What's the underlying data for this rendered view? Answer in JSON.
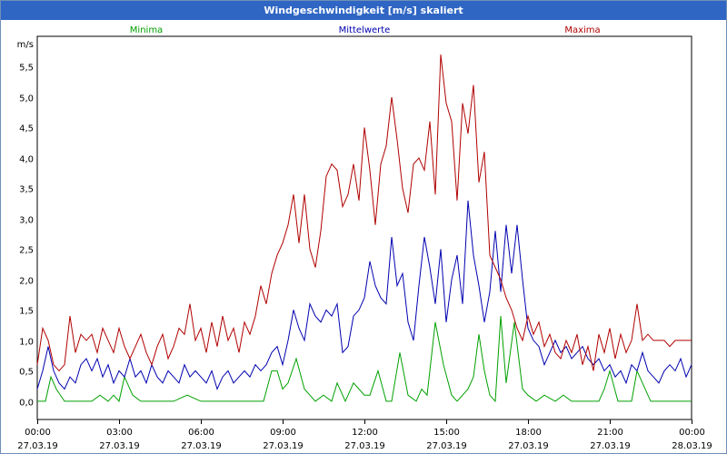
{
  "window": {
    "title": "Windgeschwindigkeit [m/s] skaliert"
  },
  "chart_data": {
    "type": "line",
    "title": "Windgeschwindigkeit [m/s] skaliert",
    "ylabel": "m/s",
    "xlabel": "",
    "ylim": [
      -0.3,
      6.0
    ],
    "y_ticks": [
      "0,0",
      "0,5",
      "1,0",
      "1,5",
      "2,0",
      "2,5",
      "3,0",
      "3,5",
      "4,0",
      "4,5",
      "5,0",
      "5,5"
    ],
    "y_tick_values": [
      0,
      0.5,
      1.0,
      1.5,
      2.0,
      2.5,
      3.0,
      3.5,
      4.0,
      4.5,
      5.0,
      5.5
    ],
    "x_range_hours": [
      0,
      24
    ],
    "x_ticks": [
      {
        "hour": 0,
        "time": "00:00",
        "date": "27.03.19"
      },
      {
        "hour": 3,
        "time": "03:00",
        "date": "27.03.19"
      },
      {
        "hour": 6,
        "time": "06:00",
        "date": "27.03.19"
      },
      {
        "hour": 9,
        "time": "09:00",
        "date": "27.03.19"
      },
      {
        "hour": 12,
        "time": "12:00",
        "date": "27.03.19"
      },
      {
        "hour": 15,
        "time": "15:00",
        "date": "27.03.19"
      },
      {
        "hour": 18,
        "time": "18:00",
        "date": "27.03.19"
      },
      {
        "hour": 21,
        "time": "21:00",
        "date": "27.03.19"
      },
      {
        "hour": 24,
        "time": "00:00",
        "date": "28.03.19"
      }
    ],
    "grid": true,
    "legend_position": "top",
    "series": [
      {
        "name": "Minima",
        "color": "#00a000",
        "x": [
          0,
          0.3,
          0.5,
          0.7,
          1.0,
          1.5,
          2.0,
          2.3,
          2.6,
          2.8,
          3.0,
          3.2,
          3.5,
          3.8,
          4.0,
          4.5,
          5.0,
          5.5,
          6.0,
          6.5,
          7.0,
          7.5,
          8.0,
          8.3,
          8.6,
          8.8,
          9.0,
          9.2,
          9.5,
          9.8,
          10.0,
          10.2,
          10.5,
          10.8,
          11.0,
          11.3,
          11.6,
          12.0,
          12.2,
          12.5,
          12.8,
          13.0,
          13.3,
          13.6,
          13.9,
          14.1,
          14.3,
          14.6,
          14.9,
          15.2,
          15.4,
          15.6,
          15.8,
          16.0,
          16.2,
          16.4,
          16.6,
          16.8,
          17.0,
          17.2,
          17.5,
          17.8,
          18.0,
          18.3,
          18.6,
          19.0,
          19.3,
          19.6,
          20.0,
          20.3,
          20.6,
          20.8,
          21.0,
          21.3,
          21.6,
          21.8,
          22.0,
          22.5,
          23.0,
          23.5,
          24.0
        ],
        "y": [
          0,
          0,
          0.4,
          0.2,
          0,
          0,
          0,
          0.1,
          0,
          0.1,
          0,
          0.4,
          0.1,
          0,
          0,
          0,
          0,
          0.1,
          0,
          0,
          0,
          0,
          0,
          0,
          0.5,
          0.5,
          0.2,
          0.3,
          0.7,
          0.2,
          0.1,
          0,
          0.1,
          0,
          0.3,
          0,
          0.3,
          0.1,
          0.1,
          0.5,
          0,
          0,
          0.8,
          0.1,
          0,
          0.2,
          0.1,
          1.3,
          0.6,
          0.1,
          0,
          0.1,
          0.2,
          0.4,
          1.1,
          0.5,
          0.1,
          0,
          1.4,
          0.3,
          1.3,
          0.2,
          0.1,
          0,
          0.1,
          0,
          0.1,
          0,
          0,
          0,
          0,
          0.2,
          0.5,
          0,
          0,
          0,
          0.5,
          0,
          0,
          0,
          0
        ]
      },
      {
        "name": "Mittelwerte",
        "color": "#0000b0",
        "x": [
          0,
          0.2,
          0.4,
          0.6,
          0.8,
          1.0,
          1.2,
          1.4,
          1.6,
          1.8,
          2.0,
          2.2,
          2.4,
          2.6,
          2.8,
          3.0,
          3.2,
          3.4,
          3.6,
          3.8,
          4.0,
          4.2,
          4.4,
          4.6,
          4.8,
          5.0,
          5.2,
          5.4,
          5.6,
          5.8,
          6.0,
          6.2,
          6.4,
          6.6,
          6.8,
          7.0,
          7.2,
          7.4,
          7.6,
          7.8,
          8.0,
          8.2,
          8.4,
          8.6,
          8.8,
          9.0,
          9.2,
          9.4,
          9.6,
          9.8,
          10.0,
          10.2,
          10.4,
          10.6,
          10.8,
          11.0,
          11.2,
          11.4,
          11.6,
          11.8,
          12.0,
          12.2,
          12.4,
          12.6,
          12.8,
          13.0,
          13.2,
          13.4,
          13.6,
          13.8,
          14.0,
          14.2,
          14.4,
          14.6,
          14.8,
          15.0,
          15.2,
          15.4,
          15.6,
          15.8,
          16.0,
          16.2,
          16.4,
          16.6,
          16.8,
          17.0,
          17.2,
          17.4,
          17.6,
          17.8,
          18.0,
          18.2,
          18.4,
          18.6,
          18.8,
          19.0,
          19.2,
          19.4,
          19.6,
          19.8,
          20.0,
          20.2,
          20.4,
          20.6,
          20.8,
          21.0,
          21.2,
          21.4,
          21.6,
          21.8,
          22.0,
          22.2,
          22.4,
          22.6,
          22.8,
          23.0,
          23.2,
          23.4,
          23.6,
          23.8,
          24.0
        ],
        "y": [
          0.2,
          0.5,
          0.9,
          0.5,
          0.3,
          0.2,
          0.4,
          0.3,
          0.6,
          0.7,
          0.5,
          0.7,
          0.4,
          0.6,
          0.3,
          0.5,
          0.4,
          0.7,
          0.4,
          0.5,
          0.3,
          0.6,
          0.4,
          0.3,
          0.5,
          0.4,
          0.3,
          0.6,
          0.4,
          0.5,
          0.4,
          0.3,
          0.5,
          0.2,
          0.4,
          0.5,
          0.3,
          0.4,
          0.5,
          0.4,
          0.6,
          0.5,
          0.6,
          0.8,
          0.9,
          0.6,
          1.0,
          1.5,
          1.2,
          1.0,
          1.6,
          1.4,
          1.3,
          1.5,
          1.4,
          1.6,
          0.8,
          0.9,
          1.4,
          1.5,
          1.7,
          2.3,
          1.9,
          1.7,
          1.6,
          2.7,
          1.9,
          2.1,
          1.3,
          1.0,
          1.9,
          2.7,
          2.2,
          1.6,
          2.5,
          1.3,
          2.0,
          2.4,
          1.6,
          3.3,
          2.4,
          1.9,
          1.3,
          1.8,
          2.8,
          1.8,
          2.9,
          2.1,
          2.9,
          2.0,
          1.2,
          1.0,
          0.9,
          0.6,
          0.8,
          1.0,
          0.8,
          0.9,
          0.7,
          0.8,
          0.9,
          0.7,
          0.6,
          0.7,
          0.5,
          0.6,
          0.4,
          0.5,
          0.3,
          0.6,
          0.5,
          0.8,
          0.5,
          0.4,
          0.3,
          0.5,
          0.6,
          0.5,
          0.7,
          0.4,
          0.6
        ]
      },
      {
        "name": "Maxima",
        "color": "#b00000",
        "x": [
          0,
          0.2,
          0.4,
          0.6,
          0.8,
          1.0,
          1.2,
          1.4,
          1.6,
          1.8,
          2.0,
          2.2,
          2.4,
          2.6,
          2.8,
          3.0,
          3.2,
          3.4,
          3.6,
          3.8,
          4.0,
          4.2,
          4.4,
          4.6,
          4.8,
          5.0,
          5.2,
          5.4,
          5.6,
          5.8,
          6.0,
          6.2,
          6.4,
          6.6,
          6.8,
          7.0,
          7.2,
          7.4,
          7.6,
          7.8,
          8.0,
          8.2,
          8.4,
          8.6,
          8.8,
          9.0,
          9.2,
          9.4,
          9.6,
          9.8,
          10.0,
          10.2,
          10.4,
          10.6,
          10.8,
          11.0,
          11.2,
          11.4,
          11.6,
          11.8,
          12.0,
          12.2,
          12.4,
          12.6,
          12.8,
          13.0,
          13.2,
          13.4,
          13.6,
          13.8,
          14.0,
          14.2,
          14.4,
          14.6,
          14.8,
          15.0,
          15.2,
          15.4,
          15.6,
          15.8,
          16.0,
          16.2,
          16.4,
          16.6,
          16.8,
          17.0,
          17.2,
          17.4,
          17.6,
          17.8,
          18.0,
          18.2,
          18.4,
          18.6,
          18.8,
          19.0,
          19.2,
          19.4,
          19.6,
          19.8,
          20.0,
          20.2,
          20.4,
          20.6,
          20.8,
          21.0,
          21.2,
          21.4,
          21.6,
          21.8,
          22.0,
          22.2,
          22.4,
          22.6,
          22.8,
          23.0,
          23.2,
          23.4,
          23.6,
          23.8,
          24.0
        ],
        "y": [
          0.6,
          1.2,
          1.0,
          0.6,
          0.5,
          0.6,
          1.4,
          0.8,
          1.1,
          1.0,
          1.1,
          0.8,
          1.2,
          1.0,
          0.8,
          1.2,
          0.9,
          0.7,
          0.9,
          1.1,
          0.8,
          0.6,
          0.9,
          1.1,
          0.7,
          0.9,
          1.2,
          1.1,
          1.6,
          1.0,
          1.2,
          0.8,
          1.3,
          0.9,
          1.4,
          1.0,
          1.2,
          0.8,
          1.3,
          1.1,
          1.4,
          1.9,
          1.6,
          2.1,
          2.4,
          2.6,
          2.9,
          3.4,
          2.6,
          3.4,
          2.5,
          2.2,
          2.8,
          3.7,
          3.9,
          3.8,
          3.2,
          3.4,
          3.9,
          3.3,
          4.5,
          3.8,
          2.9,
          3.9,
          4.2,
          5.0,
          4.3,
          3.5,
          3.1,
          3.9,
          4.0,
          3.8,
          4.6,
          3.4,
          5.7,
          4.9,
          4.6,
          3.3,
          4.9,
          4.4,
          5.2,
          3.6,
          4.1,
          2.4,
          2.2,
          2.0,
          1.7,
          1.5,
          1.2,
          1.0,
          1.4,
          1.1,
          1.3,
          0.9,
          1.1,
          0.8,
          0.7,
          1.0,
          0.8,
          1.1,
          0.6,
          0.9,
          0.5,
          1.1,
          0.8,
          1.2,
          0.7,
          1.1,
          0.8,
          1.0,
          1.6,
          1.0,
          1.1,
          1.0,
          1.0,
          1.0,
          0.9,
          1.0,
          1.0,
          1.0,
          1.0
        ]
      }
    ]
  }
}
